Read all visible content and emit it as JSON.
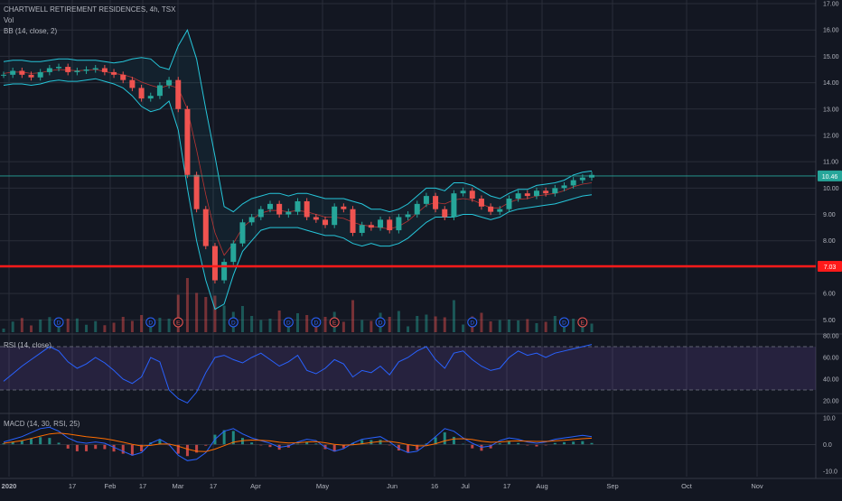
{
  "header": {
    "symbol_line": "CHARTWELL RETIREMENT RESIDENCES, 4h, TSX",
    "volume_label": "Vol",
    "bb_label": "BB (14, close, 2)"
  },
  "colors": {
    "background": "#131722",
    "grid": "#2a2e39",
    "candle_up": "#26a69a",
    "candle_down": "#ef5350",
    "bollinger": "#26c6da",
    "bb_basis": "#e040fb",
    "support_line": "#ff1a1a",
    "rsi_line": "#2962ff",
    "rsi_band": "#7e57c2",
    "macd_line": "#2962ff",
    "signal_line": "#ff6d00",
    "last_price_tag": "#26a69a"
  },
  "chart_data": [
    {
      "type": "line",
      "pane": "price",
      "price_axis": [
        "17.00",
        "16.00",
        "15.00",
        "14.00",
        "13.00",
        "12.00",
        "11.00",
        "10.00",
        "9.00",
        "8.00",
        "7.00",
        "6.00",
        "5.00"
      ],
      "ylim": [
        4.6,
        17.0
      ],
      "x_ticks": [
        "2020",
        "17",
        "Feb",
        "17",
        "Mar",
        "17",
        "Apr",
        "May",
        "Jun",
        "16",
        "Jul",
        "17",
        "Aug",
        "Sep",
        "Oct",
        "Nov"
      ],
      "close": [
        14.3,
        14.45,
        14.3,
        14.2,
        14.4,
        14.55,
        14.6,
        14.4,
        14.45,
        14.5,
        14.55,
        14.4,
        14.3,
        14.1,
        13.8,
        13.4,
        13.5,
        13.9,
        14.1,
        13.0,
        10.5,
        9.2,
        7.8,
        6.5,
        7.2,
        7.9,
        8.7,
        8.9,
        9.2,
        9.4,
        9.0,
        9.1,
        9.5,
        8.9,
        8.8,
        8.6,
        9.3,
        9.2,
        8.3,
        8.6,
        8.5,
        8.8,
        8.4,
        8.9,
        9.0,
        9.4,
        9.7,
        9.2,
        8.9,
        9.8,
        9.9,
        9.6,
        9.3,
        9.1,
        9.2,
        9.6,
        9.8,
        9.7,
        9.9,
        9.8,
        10.0,
        10.1,
        10.3,
        10.4,
        10.5
      ],
      "bb_upper": [
        14.8,
        14.85,
        14.85,
        14.8,
        14.8,
        14.85,
        14.9,
        14.9,
        14.85,
        14.85,
        14.85,
        14.8,
        14.75,
        14.8,
        14.9,
        14.95,
        14.9,
        14.6,
        14.5,
        15.4,
        16.0,
        14.9,
        13.0,
        11.2,
        9.3,
        9.1,
        9.4,
        9.6,
        9.7,
        9.8,
        9.8,
        9.7,
        9.8,
        9.8,
        9.7,
        9.6,
        9.6,
        9.6,
        9.5,
        9.4,
        9.2,
        9.2,
        9.1,
        9.2,
        9.4,
        9.7,
        10.0,
        10.0,
        9.9,
        10.2,
        10.2,
        10.1,
        9.9,
        9.7,
        9.6,
        9.8,
        9.95,
        9.95,
        10.1,
        10.15,
        10.2,
        10.3,
        10.5,
        10.6,
        10.65
      ],
      "bb_lower": [
        13.9,
        13.95,
        13.95,
        13.9,
        13.95,
        14.05,
        14.1,
        14.05,
        14.05,
        14.1,
        14.15,
        14.05,
        13.95,
        13.8,
        13.5,
        13.1,
        12.9,
        13.0,
        13.3,
        12.2,
        10.0,
        8.0,
        6.5,
        5.4,
        5.6,
        6.7,
        7.6,
        8.0,
        8.4,
        8.5,
        8.5,
        8.5,
        8.5,
        8.4,
        8.3,
        8.2,
        8.2,
        8.1,
        7.9,
        7.8,
        7.9,
        7.8,
        7.8,
        7.9,
        8.1,
        8.4,
        8.7,
        8.9,
        8.9,
        8.9,
        9.0,
        9.0,
        8.9,
        8.8,
        8.9,
        9.1,
        9.2,
        9.25,
        9.3,
        9.35,
        9.4,
        9.5,
        9.6,
        9.7,
        9.75
      ],
      "support_level": 7.03,
      "last_price": 10.46,
      "last_price_label": "10.46",
      "support_label": "7.03",
      "event_markers": [
        {
          "x_index": 6,
          "letter": "D"
        },
        {
          "x_index": 16,
          "letter": "D"
        },
        {
          "x_index": 19,
          "letter": "E"
        },
        {
          "x_index": 25,
          "letter": "D"
        },
        {
          "x_index": 31,
          "letter": "D"
        },
        {
          "x_index": 34,
          "letter": "D"
        },
        {
          "x_index": 36,
          "letter": "E"
        },
        {
          "x_index": 41,
          "letter": "D"
        },
        {
          "x_index": 51,
          "letter": "D"
        },
        {
          "x_index": 61,
          "letter": "D"
        },
        {
          "x_index": 63,
          "letter": "E"
        }
      ]
    },
    {
      "type": "line",
      "pane": "rsi",
      "label": "RSI (14, close)",
      "axis": [
        "80.00",
        "60.00",
        "40.00",
        "20.00"
      ],
      "ylim": [
        10,
        80
      ],
      "upper_band": 70,
      "lower_band": 30,
      "values": [
        38,
        45,
        52,
        58,
        64,
        70,
        66,
        56,
        50,
        54,
        60,
        55,
        48,
        40,
        36,
        42,
        60,
        56,
        30,
        22,
        18,
        28,
        46,
        60,
        62,
        58,
        55,
        60,
        64,
        58,
        52,
        56,
        62,
        48,
        45,
        50,
        58,
        54,
        42,
        48,
        46,
        52,
        44,
        56,
        60,
        66,
        70,
        58,
        50,
        64,
        66,
        58,
        52,
        48,
        50,
        60,
        66,
        62,
        64,
        60,
        64,
        66,
        68,
        70,
        72
      ]
    },
    {
      "type": "bar",
      "pane": "macd",
      "label": "MACD (14, 30, RSI, 25)",
      "axis": [
        "10.0",
        "0.0",
        "-10.0"
      ],
      "ylim": [
        -12,
        11
      ],
      "macd": [
        1.0,
        2.0,
        3.0,
        4.5,
        6.0,
        6.5,
        5.0,
        2.5,
        1.0,
        0.5,
        1.0,
        0.5,
        -1.0,
        -2.5,
        -4.0,
        -3.0,
        0.5,
        2.0,
        0.0,
        -4.0,
        -6.0,
        -5.5,
        -3.0,
        2.0,
        5.0,
        6.0,
        4.0,
        2.5,
        1.5,
        0.5,
        -1.0,
        -0.5,
        1.0,
        2.0,
        1.5,
        -1.0,
        -2.5,
        -1.5,
        0.5,
        2.0,
        2.5,
        3.0,
        1.0,
        -1.5,
        -3.0,
        -2.5,
        0.0,
        3.0,
        6.0,
        5.0,
        2.5,
        0.5,
        -1.0,
        -0.5,
        1.5,
        2.5,
        2.0,
        1.0,
        0.5,
        1.0,
        2.0,
        2.5,
        3.0,
        3.5,
        3.0
      ],
      "signal": [
        0.5,
        1.0,
        1.5,
        2.3,
        3.2,
        4.0,
        4.3,
        4.0,
        3.5,
        3.0,
        2.6,
        2.2,
        1.6,
        0.9,
        0.1,
        -0.5,
        -0.3,
        0.2,
        0.2,
        -0.6,
        -1.7,
        -2.5,
        -2.6,
        -1.7,
        -0.4,
        0.9,
        1.5,
        1.7,
        1.6,
        1.4,
        0.9,
        0.6,
        0.7,
        1.0,
        1.1,
        0.7,
        0.1,
        -0.2,
        -0.1,
        0.3,
        0.8,
        1.2,
        1.2,
        0.7,
        0.0,
        -0.5,
        -0.4,
        0.3,
        1.4,
        2.1,
        2.2,
        1.9,
        1.3,
        0.9,
        1.0,
        1.3,
        1.4,
        1.3,
        1.2,
        1.2,
        1.4,
        1.6,
        1.9,
        2.2,
        2.4
      ]
    }
  ]
}
